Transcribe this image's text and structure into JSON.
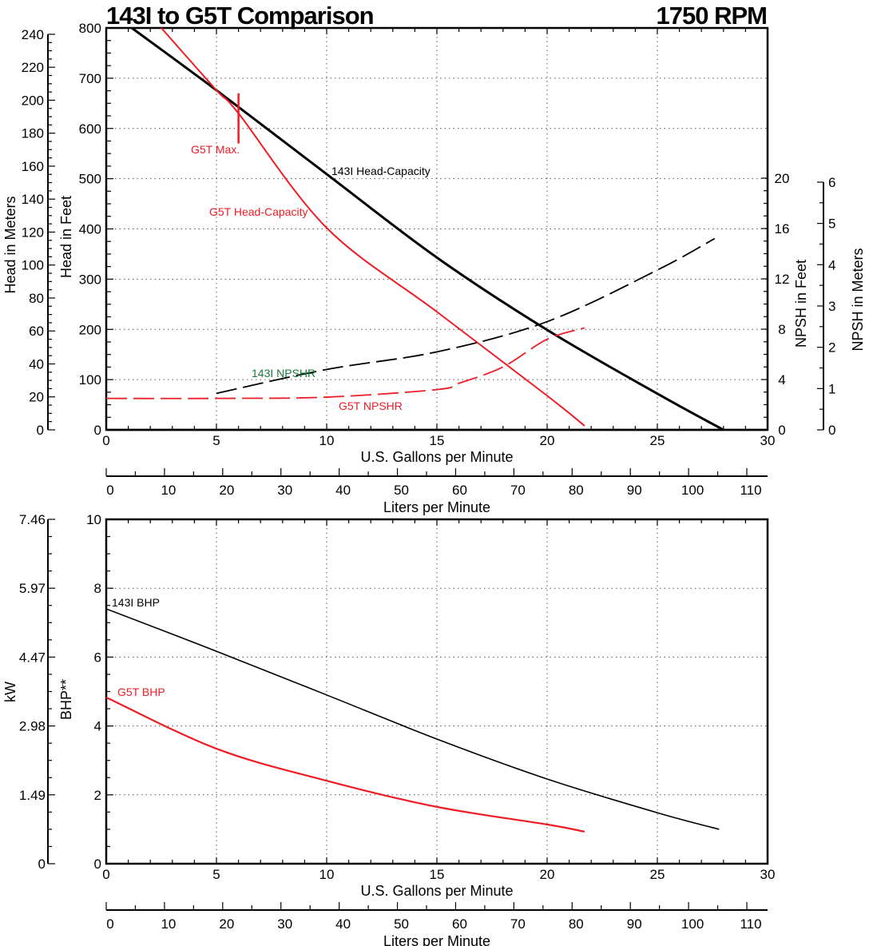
{
  "chart_data": [
    {
      "type": "line",
      "title": "143I  to G5T Comparison",
      "subtitle": "1750 RPM",
      "xlabel": "U.S. Gallons per Minute",
      "xlabel2": "Liters per Minute",
      "ylabel": "Head in Feet",
      "ylabel_meters": "Head in Meters",
      "y2label": "NPSH in Feet",
      "y2label_meters": "NPSH in Meters",
      "xlim": [
        0,
        30
      ],
      "ylim": [
        0,
        800
      ],
      "y2lim": [
        0,
        25.4
      ],
      "grid": true,
      "xticks": [
        0,
        5,
        10,
        15,
        20,
        25,
        30
      ],
      "lpm_ticks": [
        0,
        10,
        20,
        30,
        40,
        50,
        60,
        70,
        80,
        90,
        100,
        110
      ],
      "yticks": [
        0,
        100,
        200,
        300,
        400,
        500,
        600,
        700,
        800
      ],
      "meter_ticks": [
        0,
        20,
        40,
        60,
        80,
        100,
        120,
        140,
        160,
        180,
        200,
        220,
        240
      ],
      "npsh_ft_ticks": [
        0,
        4,
        8,
        12,
        16,
        20
      ],
      "npsh_m_ticks": [
        0,
        1,
        2,
        3,
        4,
        5,
        6
      ],
      "series": [
        {
          "name": "143I Head-Capacity",
          "axis": "head",
          "color": "#000000",
          "style": "solid",
          "x": [
            1.16,
            5,
            10,
            15,
            20,
            25,
            28
          ],
          "y": [
            800,
            676,
            509,
            343,
            199,
            72,
            0
          ]
        },
        {
          "name": "G5T Head-Capacity",
          "axis": "head",
          "color": "#ee1c25",
          "style": "solid",
          "x": [
            2.5,
            5,
            6,
            10,
            15,
            20,
            21.7
          ],
          "y": [
            800,
            676,
            630,
            402,
            235,
            68,
            8
          ]
        },
        {
          "name": "143I NPSHR",
          "axis": "npsh",
          "color": "#000000",
          "style": "dashed",
          "label_color": "#1a7a3a",
          "x": [
            5,
            10,
            15,
            20,
            25,
            27.6
          ],
          "y": [
            2.9,
            4.8,
            6.2,
            8.6,
            12.7,
            15.2
          ]
        },
        {
          "name": "G5T NPSHR",
          "axis": "npsh",
          "color": "#ee1c25",
          "style": "dashed",
          "x": [
            0,
            5,
            10,
            15,
            16,
            18,
            20,
            21.7
          ],
          "y": [
            2.5,
            2.5,
            2.6,
            3.2,
            3.7,
            5.0,
            7.2,
            8.1
          ]
        }
      ],
      "annotations": [
        {
          "text": "G5T Max.",
          "x": 6,
          "color": "#ee1c25",
          "range_ft": [
            570,
            670
          ]
        }
      ]
    },
    {
      "type": "line",
      "xlabel": "U.S. Gallons per Minute",
      "xlabel2": "Liters per Minute",
      "ylabel": "BHP**",
      "ylabel_kw": "kW",
      "xlim": [
        0,
        30
      ],
      "ylim": [
        0,
        10
      ],
      "grid": true,
      "xticks": [
        0,
        5,
        10,
        15,
        20,
        25,
        30
      ],
      "lpm_ticks": [
        0,
        10,
        20,
        30,
        40,
        50,
        60,
        70,
        80,
        90,
        100,
        110
      ],
      "yticks": [
        0,
        2,
        4,
        6,
        8,
        10
      ],
      "kw_ticks": [
        "0",
        "1.49",
        "2.98",
        "4.47",
        "5.97",
        "7.46"
      ],
      "series": [
        {
          "name": "143I BHP",
          "color": "#000000",
          "x": [
            0,
            5,
            10,
            15,
            20,
            25,
            27.8
          ],
          "y": [
            7.4,
            6.17,
            4.9,
            3.62,
            2.46,
            1.48,
            1.0
          ]
        },
        {
          "name": "G5T BHP",
          "color": "#ee1c25",
          "x": [
            0,
            5,
            10,
            15,
            20,
            21.7
          ],
          "y": [
            4.83,
            3.34,
            2.41,
            1.65,
            1.14,
            0.93
          ]
        }
      ]
    }
  ]
}
